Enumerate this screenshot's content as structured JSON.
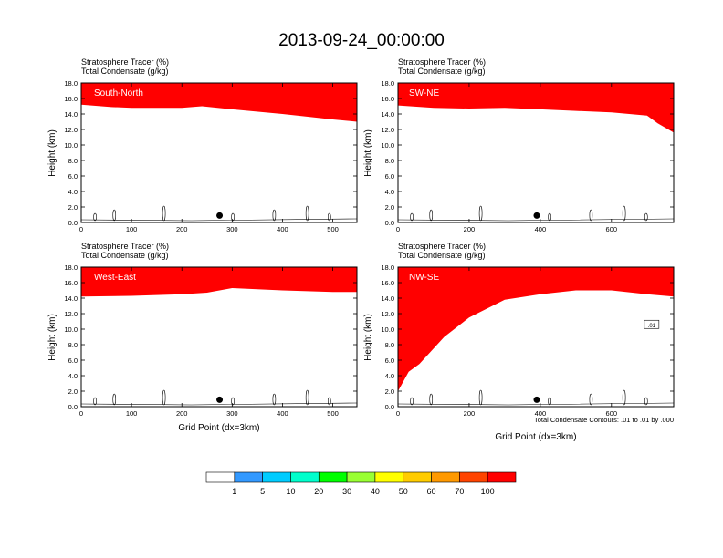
{
  "title": "2013-09-24_00:00:00",
  "panel_header": {
    "line1": "Stratosphere Tracer   (%)",
    "line2": "Total Condensate   (g/kg)"
  },
  "ylabel": "Height (km)",
  "xlabel": "Grid Point (dx=3km)",
  "contour_note": "Total Condensate Contours: .01 to .01 by .000",
  "colorbar": {
    "levels": [
      "1",
      "5",
      "10",
      "20",
      "30",
      "40",
      "50",
      "60",
      "70",
      "100"
    ],
    "colors": [
      "#ffffff",
      "#3399ff",
      "#00ccff",
      "#00ffcc",
      "#00ff00",
      "#99ff33",
      "#ffff00",
      "#ffcc00",
      "#ff9900",
      "#ff4400",
      "#ff0000"
    ]
  },
  "chart_data": [
    {
      "type": "heatmap",
      "name": "South-North",
      "xlim": [
        0,
        548
      ],
      "ylim": [
        0,
        18
      ],
      "xticks": [
        "0",
        "100",
        "200",
        "300",
        "400",
        "500"
      ],
      "yticks": [
        "0.0",
        "2.0",
        "4.0",
        "6.0",
        "8.0",
        "10.0",
        "12.0",
        "14.0",
        "16.0",
        "18.0"
      ],
      "tropopause_km": [
        [
          0,
          15.2
        ],
        [
          60,
          14.9
        ],
        [
          100,
          14.8
        ],
        [
          200,
          14.8
        ],
        [
          240,
          15.0
        ],
        [
          300,
          14.6
        ],
        [
          400,
          14.0
        ],
        [
          500,
          13.3
        ],
        [
          548,
          13.0
        ]
      ],
      "marker_x": 275,
      "contour_label": ""
    },
    {
      "type": "heatmap",
      "name": "SW-NE",
      "xlim": [
        0,
        775
      ],
      "ylim": [
        0,
        18
      ],
      "xticks": [
        "0",
        "200",
        "400",
        "600"
      ],
      "yticks": [
        "0.0",
        "2.0",
        "4.0",
        "6.0",
        "8.0",
        "10.0",
        "12.0",
        "14.0",
        "16.0",
        "18.0"
      ],
      "tropopause_km": [
        [
          0,
          15.1
        ],
        [
          100,
          14.8
        ],
        [
          200,
          14.7
        ],
        [
          300,
          14.8
        ],
        [
          400,
          14.6
        ],
        [
          500,
          14.4
        ],
        [
          600,
          14.2
        ],
        [
          700,
          13.8
        ],
        [
          730,
          12.8
        ],
        [
          775,
          11.6
        ]
      ],
      "marker_x": 390,
      "contour_label": ""
    },
    {
      "type": "heatmap",
      "name": "West-East",
      "xlim": [
        0,
        548
      ],
      "ylim": [
        0,
        18
      ],
      "xticks": [
        "0",
        "100",
        "200",
        "300",
        "400",
        "500"
      ],
      "yticks": [
        "0.0",
        "2.0",
        "4.0",
        "6.0",
        "8.0",
        "10.0",
        "12.0",
        "14.0",
        "16.0",
        "18.0"
      ],
      "tropopause_km": [
        [
          0,
          14.2
        ],
        [
          100,
          14.3
        ],
        [
          200,
          14.5
        ],
        [
          250,
          14.7
        ],
        [
          300,
          15.3
        ],
        [
          400,
          15.0
        ],
        [
          500,
          14.8
        ],
        [
          548,
          14.8
        ]
      ],
      "marker_x": 275,
      "contour_label": ""
    },
    {
      "type": "heatmap",
      "name": "NW-SE",
      "xlim": [
        0,
        775
      ],
      "ylim": [
        0,
        18
      ],
      "xticks": [
        "0",
        "200",
        "400",
        "600"
      ],
      "yticks": [
        "0.0",
        "2.0",
        "4.0",
        "6.0",
        "8.0",
        "10.0",
        "12.0",
        "14.0",
        "16.0",
        "18.0"
      ],
      "tropopause_km": [
        [
          0,
          2.0
        ],
        [
          30,
          4.5
        ],
        [
          60,
          5.5
        ],
        [
          90,
          7.0
        ],
        [
          130,
          9.0
        ],
        [
          200,
          11.5
        ],
        [
          300,
          13.8
        ],
        [
          400,
          14.5
        ],
        [
          500,
          15.0
        ],
        [
          600,
          15.0
        ],
        [
          700,
          14.5
        ],
        [
          775,
          14.2
        ]
      ],
      "marker_x": 390,
      "contour_label": ".01"
    }
  ]
}
